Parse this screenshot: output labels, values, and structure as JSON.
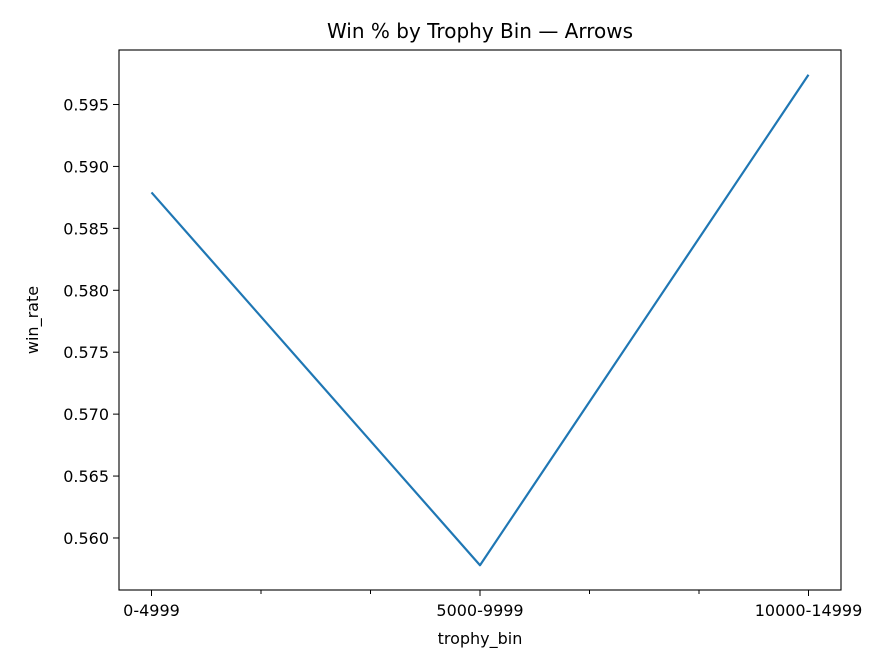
{
  "chart_data": {
    "type": "line",
    "title": "Win % by Trophy Bin — Arrows",
    "xlabel": "trophy_bin",
    "ylabel": "win_rate",
    "categories": [
      "0-4999",
      "5000-9999",
      "10000-14999"
    ],
    "series": [
      {
        "values": [
          0.5879,
          0.5578,
          0.5974
        ],
        "color": "#1f77b4"
      }
    ],
    "ylim": [
      0.5558,
      0.5994
    ],
    "yticks": [
      0.56,
      0.565,
      0.57,
      0.575,
      0.58,
      0.585,
      0.59,
      0.595
    ],
    "ytick_labels": [
      "0.560",
      "0.565",
      "0.570",
      "0.575",
      "0.580",
      "0.585",
      "0.590",
      "0.595"
    ],
    "minor_x_ticks_between": 2,
    "grid": false,
    "legend": "none"
  }
}
